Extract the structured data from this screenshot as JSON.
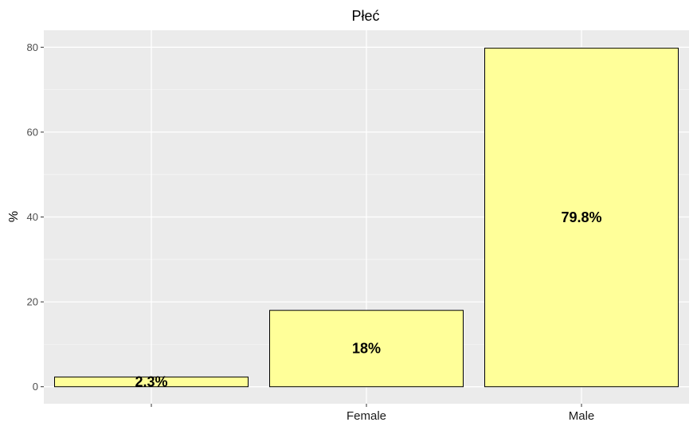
{
  "chart_data": {
    "type": "bar",
    "title": "Płeć",
    "xlabel": "",
    "ylabel": "%",
    "categories": [
      "",
      "Female",
      "Male"
    ],
    "values": [
      2.3,
      18,
      79.8
    ],
    "data_labels": [
      "2.3%",
      "18%",
      "79.8%"
    ],
    "ylim": [
      -4,
      84
    ],
    "yticks": [
      0,
      20,
      40,
      60,
      80
    ],
    "grid": true,
    "legend": "none",
    "colors": {
      "bar_fill": "#ffff99",
      "bar_stroke": "#000000",
      "panel_background": "#ebebeb",
      "grid_major": "#ffffff",
      "grid_minor": "#f5f5f5"
    }
  }
}
